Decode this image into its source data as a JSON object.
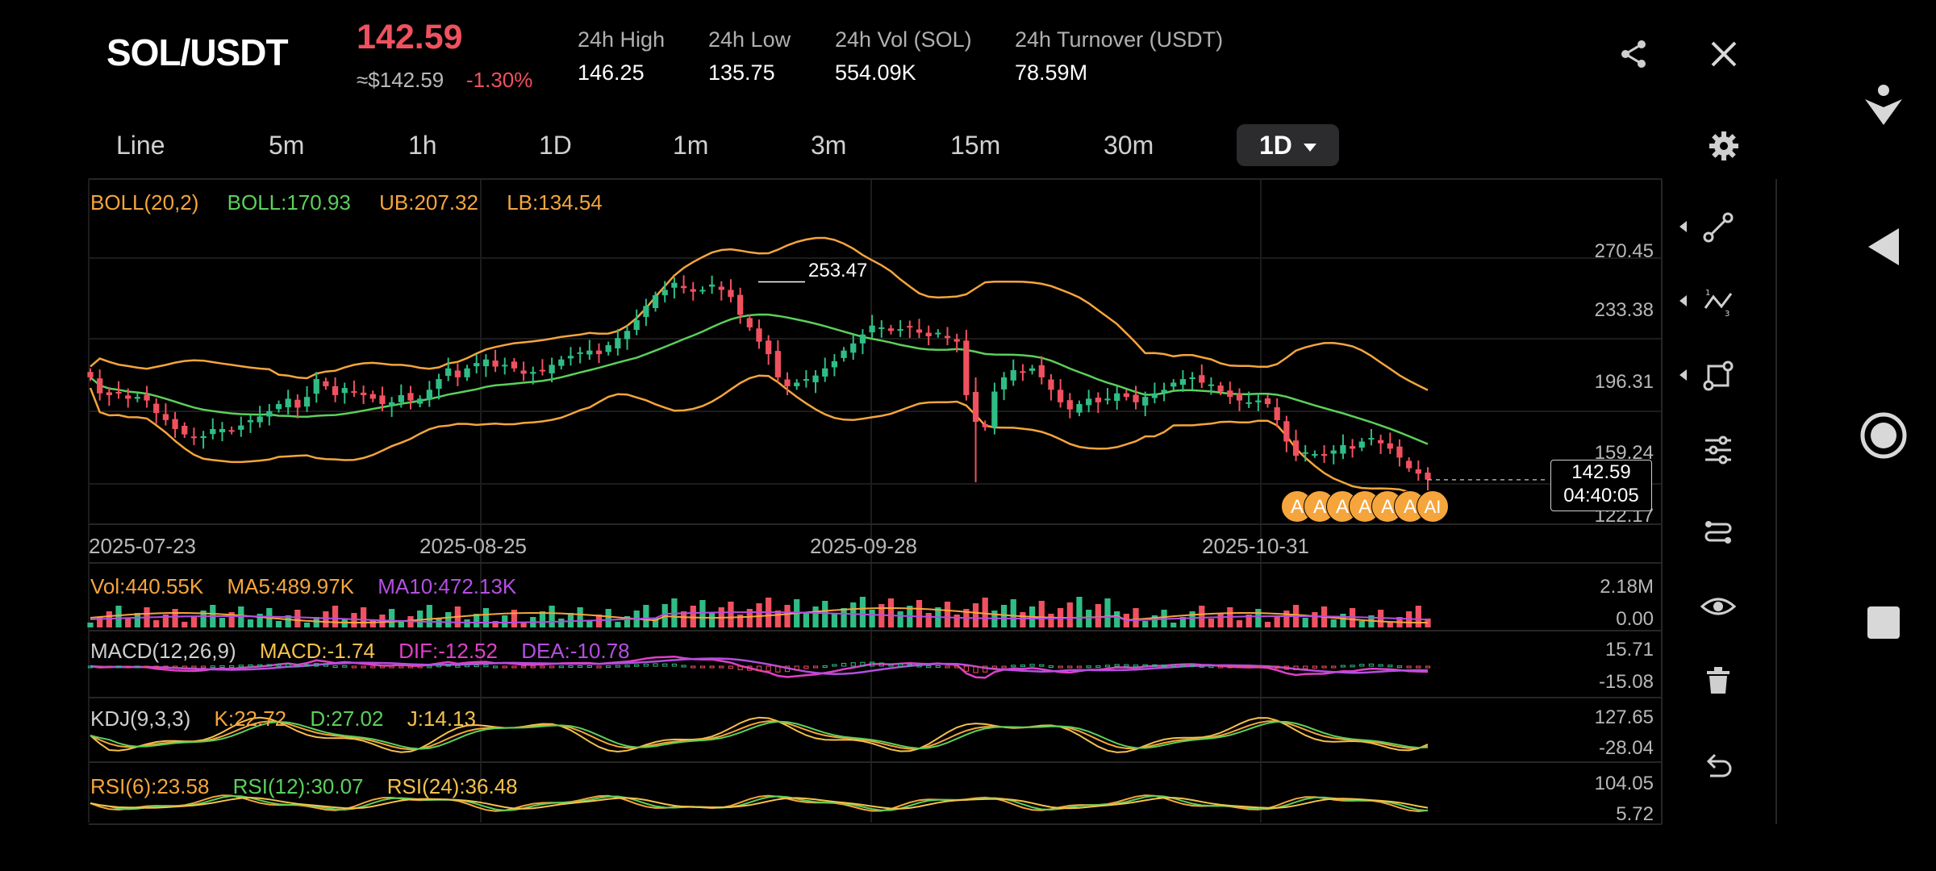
{
  "header": {
    "pair": "SOL/USDT",
    "price": "142.59",
    "approx": "≈$142.59",
    "change": "-1.30%",
    "stats": [
      {
        "label": "24h High",
        "value": "146.25"
      },
      {
        "label": "24h Low",
        "value": "135.75"
      },
      {
        "label": "24h Vol (SOL)",
        "value": "554.09K"
      },
      {
        "label": "24h Turnover (USDT)",
        "value": "78.59M"
      }
    ],
    "share_icon": "share-icon",
    "close_icon": "close-icon"
  },
  "tabs": {
    "items": [
      "Line",
      "5m",
      "1h",
      "1D",
      "1m",
      "3m",
      "15m",
      "30m"
    ],
    "active": "1D",
    "settings_icon": "gear-icon"
  },
  "boll": {
    "label": "BOLL(20,2)",
    "boll": "BOLL:170.93",
    "ub": "UB:207.32",
    "lb": "LB:134.54",
    "max_label": "253.47"
  },
  "price_axis": [
    "270.45",
    "233.38",
    "196.31",
    "159.24",
    "122.17"
  ],
  "date_axis": [
    "2025-07-23",
    "2025-08-25",
    "2025-09-28",
    "2025-10-31"
  ],
  "current_tag": {
    "price": "142.59",
    "countdown": "04:40:05"
  },
  "markers": [
    "A",
    "A",
    "A",
    "A",
    "A",
    "A",
    "AI"
  ],
  "volume": {
    "vol": "Vol:440.55K",
    "ma5": "MA5:489.97K",
    "ma10": "MA10:472.13K",
    "axis": [
      "2.18M",
      "0.00"
    ]
  },
  "macd": {
    "label": "MACD(12,26,9)",
    "macd": "MACD:-1.74",
    "dif": "DIF:-12.52",
    "dea": "DEA:-10.78",
    "axis": [
      "15.71",
      "-15.08"
    ]
  },
  "kdj": {
    "label": "KDJ(9,3,3)",
    "k": "K:22.72",
    "d": "D:27.02",
    "j": "J:14.13",
    "axis": [
      "127.65",
      "-28.04"
    ]
  },
  "rsi": {
    "r6": "RSI(6):23.58",
    "r12": "RSI(12):30.07",
    "r24": "RSI(24):36.48",
    "axis": [
      "104.05",
      "5.72"
    ]
  },
  "tools": [
    "trend-line-icon",
    "fib-icon",
    "shape-icon",
    "indicator-settings-icon",
    "path-icon",
    "eye-icon",
    "trash-icon",
    "undo-icon"
  ],
  "nav": [
    "accessibility-icon",
    "back-icon",
    "home-icon",
    "recents-icon"
  ],
  "colors": {
    "up": "#2fbd85",
    "down": "#f0515f",
    "boll_mid": "#5bd05b",
    "boll_band": "#f5a53c",
    "ma10": "#b44fe0",
    "dea": "#e040c8"
  },
  "chart_data": {
    "type": "candlestick",
    "x": [
      "2025-07-23",
      "2025-08-25",
      "2025-09-28",
      "2025-10-31"
    ],
    "ylim": [
      122.17,
      270.45
    ],
    "last_close": 142.59,
    "max_high": 253.47
  }
}
